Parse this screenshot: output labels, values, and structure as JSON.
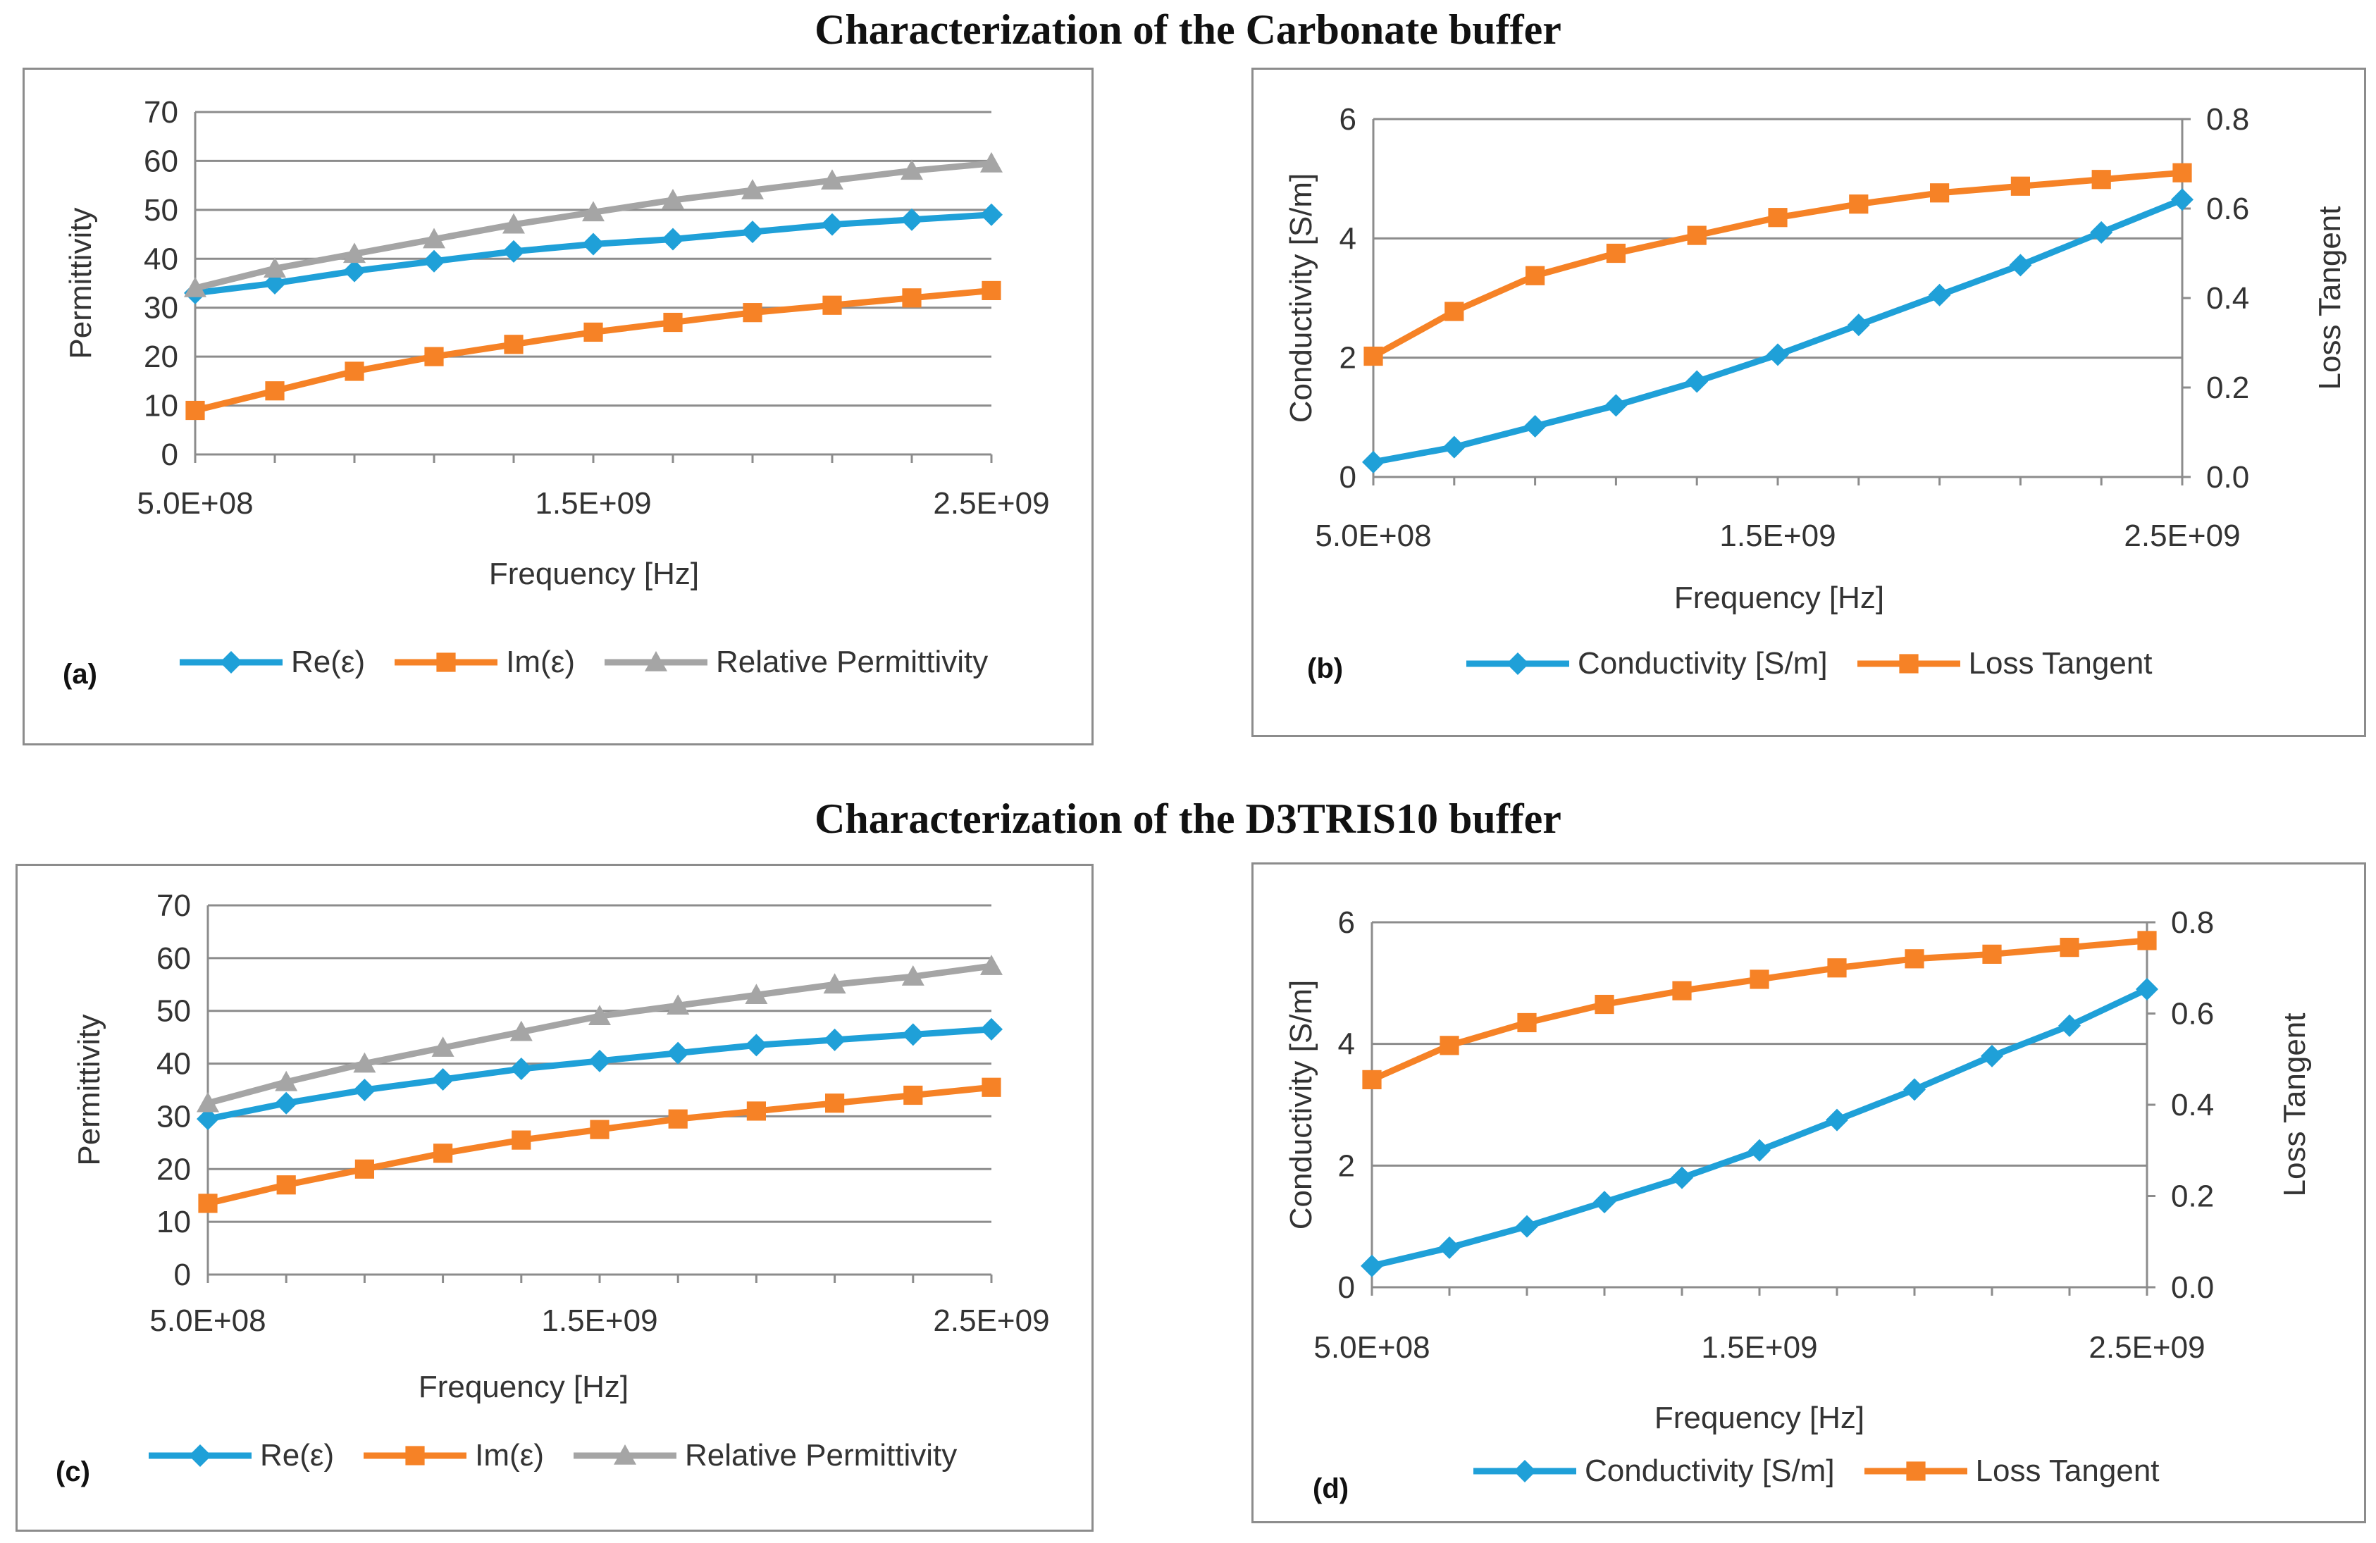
{
  "titles": {
    "carbonate": "Characterization of the Carbonate buffer",
    "d3tris": "Characterization of the D3TRIS10 buffer"
  },
  "colors": {
    "blue": "#1fa0d8",
    "orange": "#f68226",
    "gray": "#a5a5a5",
    "grid": "#8c8c8c",
    "axis_blue_text": "#1fa0d8",
    "axis_orange_text": "#f68226"
  },
  "chart_data": [
    {
      "id": "a",
      "label": "(a)",
      "type": "line",
      "xlabel": "Frequency [Hz]",
      "ylabel": "Permittivity",
      "xlim": [
        500000000,
        2500000000
      ],
      "x_ticks": [
        "5.0E+08",
        "1.5E+09",
        "2.5E+09"
      ],
      "x_tick_values": [
        500000000,
        1500000000,
        2500000000
      ],
      "ylim": [
        0,
        70
      ],
      "y_ticks": [
        0,
        10,
        20,
        30,
        40,
        50,
        60,
        70
      ],
      "x": [
        500000000,
        700000000,
        900000000,
        1100000000,
        1300000000,
        1500000000,
        1700000000,
        1900000000,
        2100000000,
        2300000000,
        2500000000
      ],
      "series": [
        {
          "name": "Re(ε)",
          "marker": "diamond",
          "color": "#1fa0d8",
          "values": [
            33,
            35,
            37.5,
            39.5,
            41.5,
            43,
            44,
            45.5,
            47,
            48,
            49
          ]
        },
        {
          "name": "Im(ε)",
          "marker": "square",
          "color": "#f68226",
          "values": [
            9,
            13,
            17,
            20,
            22.5,
            25,
            27,
            29,
            30.5,
            32,
            33.5
          ]
        },
        {
          "name": "Relative Permittivity",
          "marker": "triangle",
          "color": "#a5a5a5",
          "values": [
            34,
            38,
            41,
            44,
            47,
            49.5,
            52,
            54,
            56,
            58,
            59.5
          ]
        }
      ]
    },
    {
      "id": "b",
      "label": "(b)",
      "type": "line",
      "xlabel": "Frequency [Hz]",
      "ylabel": "Conductivity [S/m]",
      "y2label": "Loss Tangent",
      "xlim": [
        500000000,
        2500000000
      ],
      "x_ticks": [
        "5.0E+08",
        "1.5E+09",
        "2.5E+09"
      ],
      "x_tick_values": [
        500000000,
        1500000000,
        2500000000
      ],
      "ylim": [
        0,
        6
      ],
      "y_ticks": [
        0,
        2,
        4,
        6
      ],
      "y2lim": [
        0,
        0.8
      ],
      "y2_ticks": [
        "0.0",
        "0.2",
        "0.4",
        "0.6",
        "0.8"
      ],
      "x": [
        500000000,
        700000000,
        900000000,
        1100000000,
        1300000000,
        1500000000,
        1700000000,
        1900000000,
        2100000000,
        2300000000,
        2500000000
      ],
      "series": [
        {
          "name": "Conductivity [S/m]",
          "axis": "left",
          "marker": "diamond",
          "color": "#1fa0d8",
          "values": [
            0.25,
            0.5,
            0.85,
            1.2,
            1.6,
            2.05,
            2.55,
            3.05,
            3.55,
            4.1,
            4.65
          ]
        },
        {
          "name": "Loss Tangent",
          "axis": "right",
          "marker": "square",
          "color": "#f68226",
          "values": [
            0.27,
            0.37,
            0.45,
            0.5,
            0.54,
            0.58,
            0.61,
            0.635,
            0.65,
            0.665,
            0.68
          ]
        }
      ]
    },
    {
      "id": "c",
      "label": "(c)",
      "type": "line",
      "xlabel": "Frequency [Hz]",
      "ylabel": "Permittivity",
      "xlim": [
        500000000,
        2500000000
      ],
      "x_ticks": [
        "5.0E+08",
        "1.5E+09",
        "2.5E+09"
      ],
      "x_tick_values": [
        500000000,
        1500000000,
        2500000000
      ],
      "ylim": [
        0,
        70
      ],
      "y_ticks": [
        0,
        10,
        20,
        30,
        40,
        50,
        60,
        70
      ],
      "x": [
        500000000,
        700000000,
        900000000,
        1100000000,
        1300000000,
        1500000000,
        1700000000,
        1900000000,
        2100000000,
        2300000000,
        2500000000
      ],
      "series": [
        {
          "name": "Re(ε)",
          "marker": "diamond",
          "color": "#1fa0d8",
          "values": [
            29.5,
            32.5,
            35,
            37,
            39,
            40.5,
            42,
            43.5,
            44.5,
            45.5,
            46.5
          ]
        },
        {
          "name": "Im(ε)",
          "marker": "square",
          "color": "#f68226",
          "values": [
            13.5,
            17,
            20,
            23,
            25.5,
            27.5,
            29.5,
            31,
            32.5,
            34,
            35.5
          ]
        },
        {
          "name": "Relative Permittivity",
          "marker": "triangle",
          "color": "#a5a5a5",
          "values": [
            32.5,
            36.5,
            40,
            43,
            46,
            49,
            51,
            53,
            55,
            56.5,
            58.5
          ]
        }
      ]
    },
    {
      "id": "d",
      "label": "(d)",
      "type": "line",
      "xlabel": "Frequency [Hz]",
      "ylabel": "Conductivity [S/m]",
      "y2label": "Loss Tangent",
      "xlim": [
        500000000,
        2500000000
      ],
      "x_ticks": [
        "5.0E+08",
        "1.5E+09",
        "2.5E+09"
      ],
      "x_tick_values": [
        500000000,
        1500000000,
        2500000000
      ],
      "ylim": [
        0,
        6
      ],
      "y_ticks": [
        0,
        2,
        4,
        6
      ],
      "y2lim": [
        0,
        0.8
      ],
      "y2_ticks": [
        "0.0",
        "0.2",
        "0.4",
        "0.6",
        "0.8"
      ],
      "x": [
        500000000,
        700000000,
        900000000,
        1100000000,
        1300000000,
        1500000000,
        1700000000,
        1900000000,
        2100000000,
        2300000000,
        2500000000
      ],
      "series": [
        {
          "name": "Conductivity [S/m]",
          "axis": "left",
          "marker": "diamond",
          "color": "#1fa0d8",
          "values": [
            0.35,
            0.65,
            1.0,
            1.4,
            1.8,
            2.25,
            2.75,
            3.25,
            3.8,
            4.3,
            4.9
          ]
        },
        {
          "name": "Loss Tangent",
          "axis": "right",
          "marker": "square",
          "color": "#f68226",
          "values": [
            0.455,
            0.53,
            0.58,
            0.62,
            0.65,
            0.675,
            0.7,
            0.72,
            0.73,
            0.745,
            0.76
          ]
        }
      ]
    }
  ]
}
